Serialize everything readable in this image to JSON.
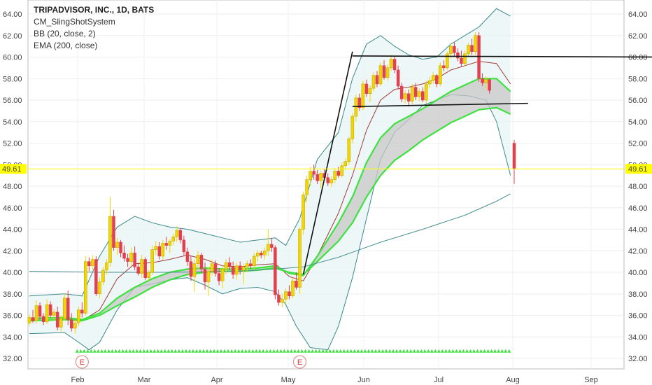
{
  "legend": {
    "title": "TRIPADVISOR, INC., 1D, BATS",
    "indicators": [
      "CM_SlingShotSystem",
      "BB (20, close, 2)",
      "EMA (200, close)"
    ]
  },
  "colors": {
    "up": "#f2d600",
    "down": "#e2404f",
    "green": "#3ee23e",
    "bb": "#3a8a8a",
    "price_line": "#ffff00",
    "ema200": "#4a9090"
  },
  "chart_data": {
    "type": "candlestick",
    "title": "TRIPADVISOR, INC., 1D, BATS",
    "ylim": [
      31,
      65
    ],
    "y_ticks": [
      "32.00",
      "34.00",
      "36.00",
      "38.00",
      "40.00",
      "42.00",
      "44.00",
      "46.00",
      "48.00",
      "50.00",
      "52.00",
      "54.00",
      "56.00",
      "58.00",
      "60.00",
      "62.00",
      "64.00"
    ],
    "x_tick_labels": [
      "Feb",
      "Mar",
      "Apr",
      "May",
      "Jun",
      "Jul",
      "Aug",
      "Sep"
    ],
    "last_price": "49.61",
    "earnings_markers": [
      "E",
      "E"
    ],
    "candles": [
      [
        35.3,
        36.1,
        35.0,
        35.8
      ],
      [
        35.8,
        36.5,
        35.3,
        35.5
      ],
      [
        35.5,
        37.4,
        35.2,
        36.9
      ],
      [
        36.9,
        37.2,
        35.6,
        35.9
      ],
      [
        35.9,
        36.2,
        35.1,
        35.4
      ],
      [
        35.4,
        37.5,
        35.2,
        37.0
      ],
      [
        37.0,
        37.3,
        35.8,
        36.0
      ],
      [
        36.0,
        36.6,
        35.5,
        36.3
      ],
      [
        36.3,
        36.8,
        34.6,
        34.9
      ],
      [
        34.9,
        36.0,
        34.5,
        35.7
      ],
      [
        35.7,
        38.0,
        35.5,
        37.6
      ],
      [
        37.6,
        38.3,
        35.1,
        35.6
      ],
      [
        35.6,
        36.2,
        34.5,
        34.8
      ],
      [
        34.8,
        35.6,
        34.3,
        35.3
      ],
      [
        35.3,
        36.8,
        35.0,
        36.5
      ],
      [
        36.5,
        37.2,
        35.8,
        36.2
      ],
      [
        36.2,
        41.5,
        36.0,
        41.0
      ],
      [
        41.0,
        41.4,
        40.1,
        40.6
      ],
      [
        40.6,
        41.6,
        40.2,
        41.2
      ],
      [
        41.2,
        41.5,
        37.8,
        38.0
      ],
      [
        38.0,
        39.5,
        37.6,
        39.1
      ],
      [
        39.1,
        40.5,
        38.8,
        40.2
      ],
      [
        40.2,
        41.2,
        39.8,
        40.9
      ],
      [
        40.9,
        47.0,
        40.5,
        45.2
      ],
      [
        45.2,
        45.8,
        42.0,
        42.3
      ],
      [
        42.3,
        43.2,
        41.6,
        42.8
      ],
      [
        42.8,
        43.0,
        41.4,
        41.8
      ],
      [
        41.8,
        42.5,
        41.0,
        41.3
      ],
      [
        41.3,
        41.7,
        40.5,
        41.0
      ],
      [
        41.0,
        42.3,
        40.6,
        41.8
      ],
      [
        41.8,
        42.4,
        40.2,
        40.5
      ],
      [
        40.5,
        40.9,
        39.7,
        39.9
      ],
      [
        39.9,
        41.6,
        39.5,
        41.2
      ],
      [
        41.2,
        41.4,
        39.3,
        39.5
      ],
      [
        39.5,
        40.2,
        39.2,
        40.0
      ],
      [
        40.0,
        42.5,
        39.8,
        42.1
      ],
      [
        42.1,
        42.9,
        41.6,
        42.4
      ],
      [
        42.4,
        42.8,
        41.2,
        41.5
      ],
      [
        41.5,
        43.0,
        41.2,
        42.7
      ],
      [
        42.7,
        43.3,
        42.1,
        42.5
      ],
      [
        42.5,
        43.1,
        41.8,
        42.9
      ],
      [
        42.9,
        43.6,
        42.5,
        43.3
      ],
      [
        43.3,
        44.3,
        42.8,
        43.9
      ],
      [
        43.9,
        44.1,
        42.7,
        43.0
      ],
      [
        43.0,
        43.4,
        41.6,
        41.9
      ],
      [
        41.9,
        42.3,
        40.6,
        41.0
      ],
      [
        41.0,
        41.5,
        39.2,
        39.6
      ],
      [
        39.6,
        41.2,
        38.2,
        40.8
      ],
      [
        40.8,
        42.0,
        40.3,
        41.6
      ],
      [
        41.6,
        41.8,
        39.9,
        40.3
      ],
      [
        40.3,
        40.9,
        38.4,
        39.1
      ],
      [
        39.1,
        40.5,
        37.8,
        40.1
      ],
      [
        40.1,
        41.2,
        39.7,
        40.8
      ],
      [
        40.8,
        41.1,
        39.6,
        39.9
      ],
      [
        39.9,
        40.4,
        38.8,
        39.2
      ],
      [
        39.2,
        40.6,
        38.5,
        40.3
      ],
      [
        40.3,
        41.2,
        39.8,
        40.9
      ],
      [
        40.9,
        41.4,
        40.2,
        40.5
      ],
      [
        40.5,
        41.0,
        39.4,
        39.8
      ],
      [
        39.8,
        40.9,
        39.3,
        40.6
      ],
      [
        40.6,
        41.0,
        39.8,
        40.2
      ],
      [
        40.2,
        40.8,
        38.9,
        40.5
      ],
      [
        40.5,
        41.1,
        40.0,
        40.8
      ],
      [
        40.8,
        41.2,
        40.3,
        40.6
      ],
      [
        40.6,
        41.8,
        40.3,
        41.5
      ],
      [
        41.5,
        42.1,
        41.0,
        41.8
      ],
      [
        41.8,
        42.0,
        41.3,
        41.6
      ],
      [
        41.6,
        42.3,
        41.2,
        42.0
      ],
      [
        42.0,
        44.0,
        41.5,
        42.6
      ],
      [
        42.6,
        43.2,
        41.9,
        42.3
      ],
      [
        42.3,
        42.5,
        37.5,
        37.9
      ],
      [
        37.9,
        38.4,
        36.9,
        37.2
      ],
      [
        37.2,
        38.0,
        36.8,
        37.5
      ],
      [
        37.5,
        38.5,
        37.1,
        38.2
      ],
      [
        38.2,
        38.8,
        37.5,
        37.8
      ],
      [
        37.8,
        39.5,
        37.6,
        39.2
      ],
      [
        39.2,
        40.0,
        38.4,
        38.6
      ],
      [
        38.6,
        44.2,
        38.0,
        44.0
      ],
      [
        44.0,
        47.5,
        43.5,
        47.2
      ],
      [
        47.2,
        49.0,
        46.5,
        48.6
      ],
      [
        48.6,
        49.8,
        48.0,
        49.4
      ],
      [
        49.4,
        50.0,
        48.6,
        49.1
      ],
      [
        49.1,
        49.5,
        48.2,
        48.5
      ],
      [
        48.5,
        49.4,
        47.8,
        49.2
      ],
      [
        49.2,
        49.6,
        48.5,
        48.8
      ],
      [
        48.8,
        49.2,
        48.0,
        48.3
      ],
      [
        48.3,
        48.9,
        47.9,
        48.6
      ],
      [
        48.6,
        49.7,
        48.3,
        49.4
      ],
      [
        49.4,
        49.8,
        48.8,
        49.0
      ],
      [
        49.0,
        50.2,
        48.8,
        49.9
      ],
      [
        49.9,
        50.6,
        49.5,
        50.3
      ],
      [
        50.3,
        52.6,
        50.0,
        52.4
      ],
      [
        52.4,
        54.8,
        52.0,
        54.5
      ],
      [
        54.5,
        56.5,
        54.0,
        56.2
      ],
      [
        56.2,
        56.6,
        55.0,
        55.3
      ],
      [
        55.3,
        57.8,
        55.1,
        57.5
      ],
      [
        57.5,
        57.9,
        56.3,
        56.6
      ],
      [
        56.6,
        57.4,
        55.8,
        57.1
      ],
      [
        57.1,
        58.6,
        56.8,
        58.3
      ],
      [
        58.3,
        58.7,
        57.2,
        57.5
      ],
      [
        57.5,
        59.5,
        57.3,
        59.2
      ],
      [
        59.2,
        59.7,
        57.9,
        58.1
      ],
      [
        58.1,
        59.3,
        57.8,
        59.0
      ],
      [
        59.0,
        60.2,
        58.7,
        59.8
      ],
      [
        59.8,
        60.1,
        58.5,
        58.8
      ],
      [
        58.8,
        59.2,
        57.0,
        57.3
      ],
      [
        57.3,
        57.6,
        55.8,
        56.1
      ],
      [
        56.1,
        56.9,
        55.7,
        56.6
      ],
      [
        56.6,
        57.0,
        55.4,
        55.9
      ],
      [
        55.9,
        57.5,
        55.6,
        57.2
      ],
      [
        57.2,
        57.6,
        56.0,
        56.3
      ],
      [
        56.3,
        57.1,
        55.9,
        56.8
      ],
      [
        56.8,
        57.2,
        55.8,
        56.0
      ],
      [
        56.0,
        57.8,
        55.7,
        57.5
      ],
      [
        57.5,
        58.2,
        57.1,
        57.8
      ],
      [
        57.8,
        58.6,
        57.5,
        58.3
      ],
      [
        58.3,
        58.4,
        57.2,
        57.5
      ],
      [
        57.5,
        59.5,
        57.3,
        59.2
      ],
      [
        59.2,
        59.7,
        58.7,
        59.0
      ],
      [
        59.0,
        60.5,
        58.8,
        60.3
      ],
      [
        60.3,
        61.2,
        59.9,
        61.0
      ],
      [
        61.0,
        61.4,
        60.1,
        60.4
      ],
      [
        60.4,
        60.8,
        59.6,
        59.9
      ],
      [
        59.9,
        60.6,
        59.1,
        59.4
      ],
      [
        59.4,
        60.6,
        59.2,
        60.3
      ],
      [
        60.3,
        61.3,
        60.0,
        61.1
      ],
      [
        61.1,
        61.7,
        60.2,
        60.5
      ],
      [
        60.5,
        62.3,
        60.2,
        62.0
      ],
      [
        62.0,
        62.3,
        57.7,
        58.0
      ],
      [
        58.0,
        58.5,
        57.3,
        57.6
      ],
      [
        57.6,
        58.2,
        57.0,
        57.9
      ],
      [
        57.9,
        58.0,
        56.6,
        56.9
      ],
      [
        52.0,
        52.3,
        48.2,
        49.61
      ]
    ],
    "bb_upper": [
      [
        0,
        37.8
      ],
      [
        10,
        38.0
      ],
      [
        15,
        37.8
      ],
      [
        20,
        41.5
      ],
      [
        25,
        44.2
      ],
      [
        30,
        45.2
      ],
      [
        35,
        44.6
      ],
      [
        40,
        44.2
      ],
      [
        45,
        44.0
      ],
      [
        50,
        43.6
      ],
      [
        55,
        43.2
      ],
      [
        60,
        42.8
      ],
      [
        65,
        43.0
      ],
      [
        70,
        43.2
      ],
      [
        73,
        42.5
      ],
      [
        77,
        45.0
      ],
      [
        82,
        50.5
      ],
      [
        88,
        53.0
      ],
      [
        92,
        58.0
      ],
      [
        96,
        61.2
      ],
      [
        100,
        62.0
      ],
      [
        104,
        61.0
      ],
      [
        108,
        60.2
      ],
      [
        112,
        59.8
      ],
      [
        116,
        60.0
      ],
      [
        120,
        61.2
      ],
      [
        124,
        62.0
      ],
      [
        128,
        62.8
      ],
      [
        133,
        64.5
      ],
      [
        137,
        63.8
      ]
    ],
    "bb_lower": [
      [
        0,
        34.3
      ],
      [
        10,
        34.4
      ],
      [
        14,
        33.5
      ],
      [
        17,
        32.8
      ],
      [
        20,
        33.5
      ],
      [
        25,
        36.5
      ],
      [
        30,
        38.6
      ],
      [
        35,
        38.9
      ],
      [
        40,
        39.3
      ],
      [
        45,
        39.5
      ],
      [
        50,
        38.8
      ],
      [
        55,
        38.0
      ],
      [
        60,
        38.5
      ],
      [
        65,
        38.6
      ],
      [
        70,
        38.2
      ],
      [
        73,
        37.0
      ],
      [
        76,
        35.0
      ],
      [
        80,
        33.0
      ],
      [
        85,
        32.8
      ],
      [
        88,
        35.0
      ],
      [
        92,
        39.5
      ],
      [
        96,
        45.0
      ],
      [
        100,
        50.5
      ],
      [
        104,
        53.0
      ],
      [
        108,
        54.2
      ],
      [
        112,
        55.5
      ],
      [
        116,
        56.0
      ],
      [
        120,
        56.5
      ],
      [
        125,
        56.4
      ],
      [
        130,
        56.0
      ],
      [
        133,
        54.0
      ],
      [
        137,
        49.0
      ]
    ],
    "bb_basis": [
      [
        0,
        35.6
      ],
      [
        10,
        35.8
      ],
      [
        15,
        35.5
      ],
      [
        20,
        36.5
      ],
      [
        25,
        39.4
      ],
      [
        30,
        40.8
      ],
      [
        35,
        40.9
      ],
      [
        40,
        41.2
      ],
      [
        45,
        41.6
      ],
      [
        50,
        41.2
      ],
      [
        55,
        40.6
      ],
      [
        60,
        40.5
      ],
      [
        65,
        40.7
      ],
      [
        70,
        40.8
      ],
      [
        74,
        39.6
      ],
      [
        78,
        39.2
      ],
      [
        82,
        41.5
      ],
      [
        88,
        45.5
      ],
      [
        92,
        49.0
      ],
      [
        96,
        53.2
      ],
      [
        100,
        56.0
      ],
      [
        104,
        57.0
      ],
      [
        108,
        57.2
      ],
      [
        112,
        57.5
      ],
      [
        116,
        58.0
      ],
      [
        120,
        58.8
      ],
      [
        124,
        59.2
      ],
      [
        128,
        59.6
      ],
      [
        133,
        59.4
      ],
      [
        137,
        57.5
      ]
    ],
    "ema_fast": [
      [
        0,
        35.7
      ],
      [
        10,
        35.8
      ],
      [
        15,
        35.6
      ],
      [
        20,
        36.2
      ],
      [
        25,
        37.6
      ],
      [
        30,
        38.6
      ],
      [
        35,
        39.4
      ],
      [
        40,
        40.0
      ],
      [
        45,
        40.3
      ],
      [
        50,
        40.4
      ],
      [
        55,
        40.3
      ],
      [
        60,
        40.3
      ],
      [
        65,
        40.4
      ],
      [
        70,
        40.6
      ],
      [
        74,
        39.9
      ],
      [
        78,
        39.7
      ],
      [
        82,
        41.5
      ],
      [
        88,
        44.6
      ],
      [
        92,
        47.0
      ],
      [
        96,
        50.2
      ],
      [
        100,
        52.5
      ],
      [
        104,
        53.8
      ],
      [
        108,
        54.5
      ],
      [
        112,
        55.2
      ],
      [
        116,
        56.0
      ],
      [
        120,
        56.8
      ],
      [
        124,
        57.4
      ],
      [
        128,
        58.0
      ],
      [
        133,
        58.0
      ],
      [
        137,
        56.8
      ]
    ],
    "ema_slow": [
      [
        0,
        35.5
      ],
      [
        10,
        35.6
      ],
      [
        15,
        35.5
      ],
      [
        20,
        36.0
      ],
      [
        25,
        36.9
      ],
      [
        30,
        37.7
      ],
      [
        35,
        38.6
      ],
      [
        40,
        39.3
      ],
      [
        45,
        39.8
      ],
      [
        50,
        40.0
      ],
      [
        55,
        40.1
      ],
      [
        60,
        40.1
      ],
      [
        65,
        40.2
      ],
      [
        70,
        40.4
      ],
      [
        74,
        40.0
      ],
      [
        78,
        39.8
      ],
      [
        82,
        41.0
      ],
      [
        88,
        42.9
      ],
      [
        92,
        44.6
      ],
      [
        96,
        47.0
      ],
      [
        100,
        49.0
      ],
      [
        104,
        50.4
      ],
      [
        108,
        51.3
      ],
      [
        112,
        52.3
      ],
      [
        116,
        53.1
      ],
      [
        120,
        53.9
      ],
      [
        124,
        54.5
      ],
      [
        128,
        55.1
      ],
      [
        133,
        55.3
      ],
      [
        137,
        54.7
      ]
    ],
    "ema200": [
      [
        0,
        40.1
      ],
      [
        20,
        40.0
      ],
      [
        40,
        40.0
      ],
      [
        60,
        40.1
      ],
      [
        70,
        40.3
      ],
      [
        78,
        40.5
      ],
      [
        88,
        41.4
      ],
      [
        100,
        42.8
      ],
      [
        112,
        44.0
      ],
      [
        124,
        45.3
      ],
      [
        133,
        46.6
      ],
      [
        137,
        47.3
      ]
    ],
    "trend_lines": [
      [
        [
          78,
          39.8
        ],
        [
          92,
          60.5
        ]
      ],
      [
        [
          92,
          55.4
        ],
        [
          142,
          55.7
        ]
      ],
      [
        [
          92,
          60.1
        ],
        [
          182,
          60.0
        ]
      ]
    ],
    "green_markers": {
      "start": 14,
      "end": 137,
      "value": 32.7
    },
    "earnings_index": [
      16,
      78
    ]
  }
}
